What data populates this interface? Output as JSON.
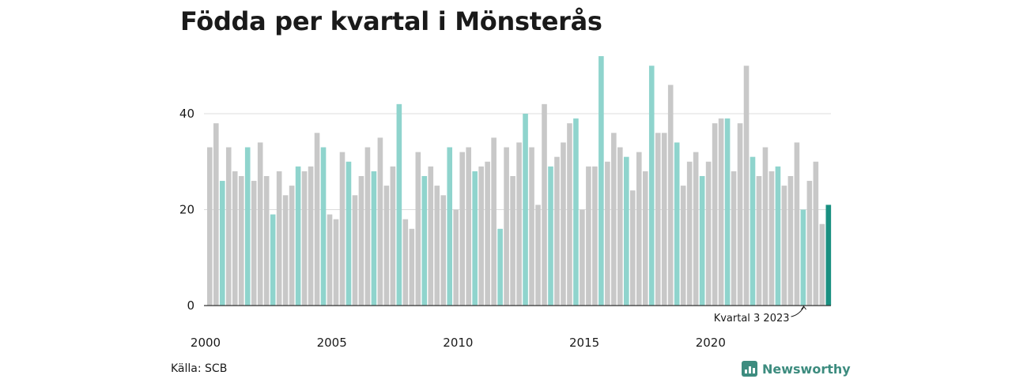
{
  "title": "Födda per kvartal i Mönsterås",
  "source": "Källa: SCB",
  "brand": {
    "name": "Newsworthy",
    "icon": "newsworthy-logo-icon",
    "color": "#3d8c7f"
  },
  "colors": {
    "default": "#c8c8c8",
    "q1": "#8fd4cd",
    "latest": "#1a9081",
    "grid": "#dcdcdc",
    "axis": "#333333"
  },
  "chart_data": {
    "type": "bar",
    "title": "Födda per kvartal i Mönsterås",
    "xlabel": "",
    "ylabel": "",
    "ylim": [
      0,
      53
    ],
    "yticks": [
      0,
      20,
      40
    ],
    "grid": true,
    "x_start_year": 2000,
    "xticks": [
      "2000",
      "2005",
      "2010",
      "2015",
      "2020"
    ],
    "series": [
      {
        "values": [
          33,
          38,
          26,
          33,
          28,
          27,
          33,
          26,
          34,
          27,
          19,
          28,
          23,
          25,
          29,
          28,
          29,
          36,
          33,
          19,
          18,
          32,
          30,
          23,
          27,
          33,
          28,
          35,
          25,
          29,
          42,
          18,
          16,
          32,
          27,
          29,
          25,
          23,
          33,
          20,
          32,
          33,
          28,
          29,
          30,
          35,
          16,
          33,
          27,
          34,
          40,
          33,
          21,
          42,
          29,
          31,
          34,
          38,
          39,
          20,
          29,
          29,
          52,
          30,
          36,
          33,
          31,
          24,
          32,
          28,
          50,
          36,
          36,
          46,
          34,
          25,
          30,
          32,
          27,
          30,
          38,
          39,
          39,
          28,
          38,
          50,
          31,
          27,
          33,
          28,
          29,
          25,
          27,
          34,
          20,
          26,
          30,
          17,
          21
        ]
      }
    ],
    "annotation": "Kvartal 3 2023"
  }
}
